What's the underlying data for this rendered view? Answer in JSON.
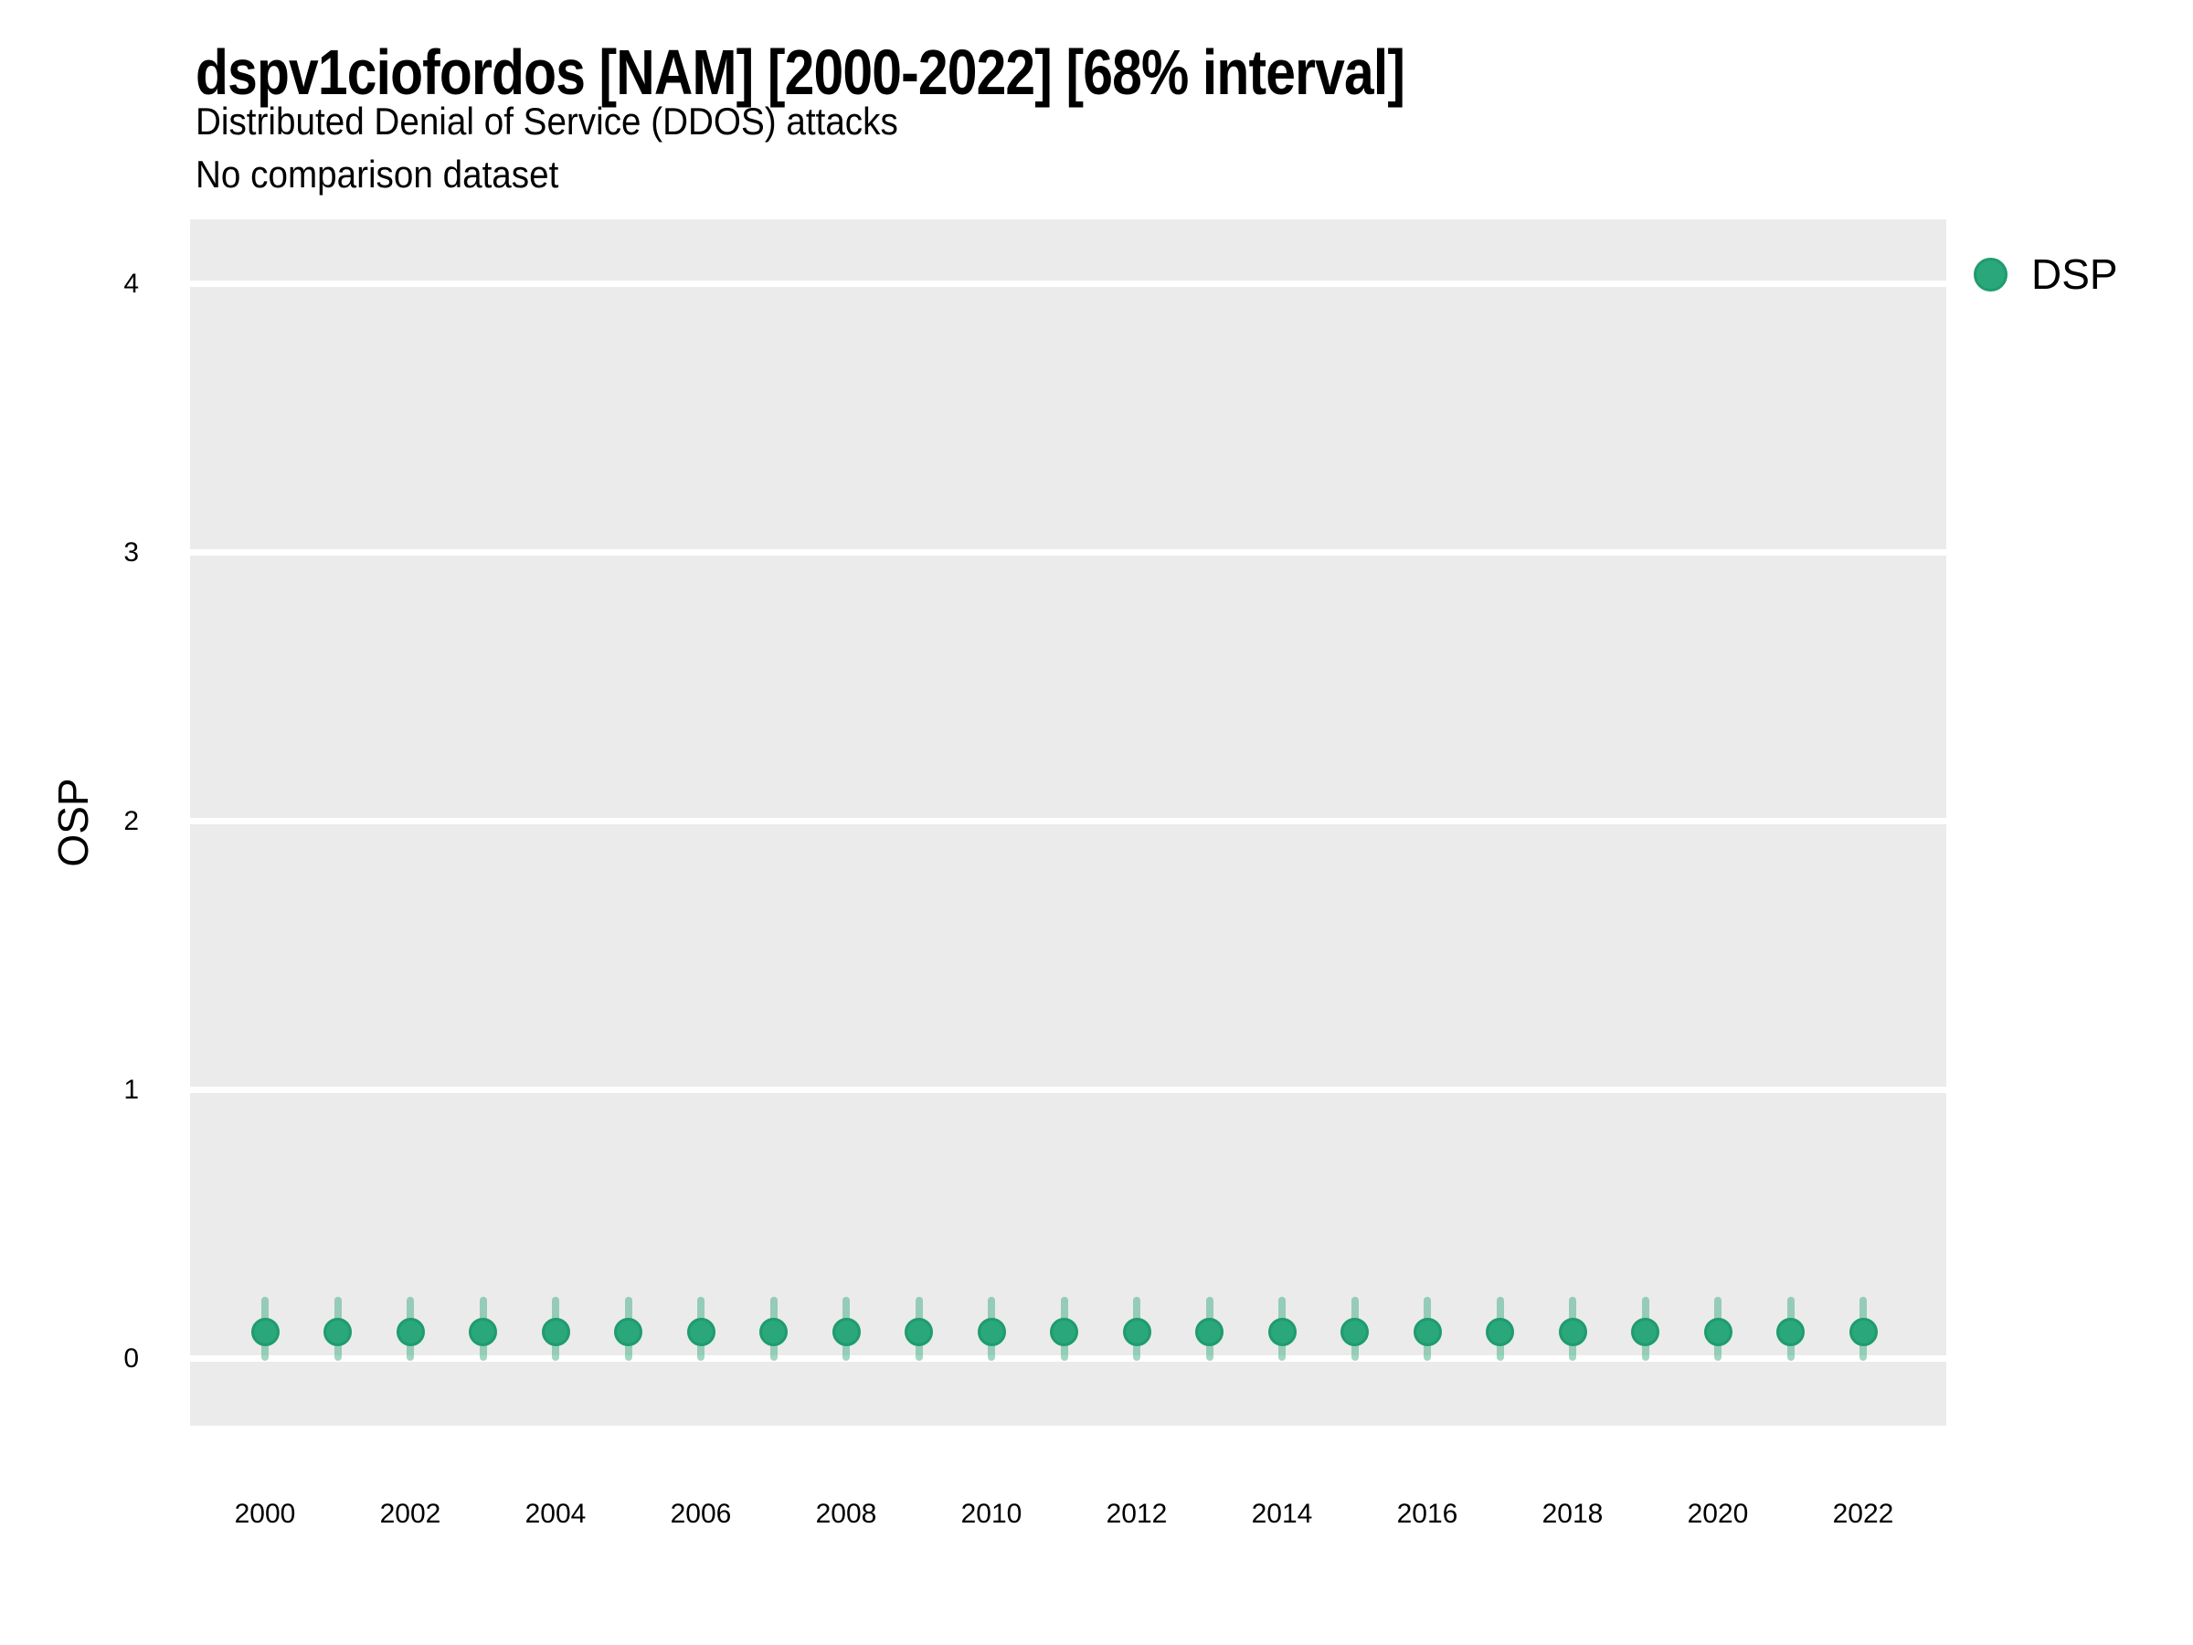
{
  "header": {
    "title": "dspv1ciofordos [NAM] [2000-2022] [68% interval]",
    "subtitle": "Distributed Denial of Service (DDOS) attacks",
    "comparison_note": "No comparison dataset"
  },
  "legend": {
    "position": "top-right",
    "items": [
      {
        "label": "DSP",
        "marker": "circle-icon",
        "color": "#2AA77B"
      }
    ]
  },
  "colors": {
    "panel_background": "#EBEBEB",
    "gridline": "#FFFFFF",
    "point_fill": "#2AA77B",
    "point_stroke": "#1F9C6D",
    "errorbar": "rgba(42,167,123,0.45)",
    "text": "#000000",
    "page_background": "#FFFFFF"
  },
  "chart_data": {
    "type": "scatter",
    "title": "dspv1ciofordos [NAM] [2000-2022] [68% interval]",
    "subtitle": "Distributed Denial of Service (DDOS) attacks",
    "note": "No comparison dataset",
    "interval_label": "68% interval",
    "xlabel": "",
    "ylabel": "OSP",
    "ylim": [
      -0.25,
      4.24
    ],
    "yticks": [
      0,
      1,
      2,
      3,
      4
    ],
    "xticks": [
      2000,
      2002,
      2004,
      2006,
      2008,
      2010,
      2012,
      2014,
      2016,
      2018,
      2020,
      2022
    ],
    "grid": "horizontal-major-only",
    "legend_position": "top-right",
    "x": [
      2000,
      2001,
      2002,
      2003,
      2004,
      2005,
      2006,
      2007,
      2008,
      2009,
      2010,
      2011,
      2012,
      2013,
      2014,
      2015,
      2016,
      2017,
      2018,
      2019,
      2020,
      2021,
      2022
    ],
    "series": [
      {
        "name": "DSP",
        "color": "#2AA77B",
        "values": [
          0.1,
          0.1,
          0.1,
          0.1,
          0.1,
          0.1,
          0.1,
          0.1,
          0.1,
          0.1,
          0.1,
          0.1,
          0.1,
          0.1,
          0.1,
          0.1,
          0.1,
          0.1,
          0.1,
          0.1,
          0.1,
          0.1,
          0.1
        ],
        "interval_low": [
          -0.01,
          -0.01,
          -0.01,
          -0.01,
          -0.01,
          -0.01,
          -0.01,
          -0.01,
          -0.01,
          -0.01,
          -0.01,
          -0.01,
          -0.01,
          -0.01,
          -0.01,
          -0.01,
          -0.01,
          -0.01,
          -0.01,
          -0.01,
          -0.01,
          -0.01,
          -0.01
        ],
        "interval_high": [
          0.23,
          0.23,
          0.23,
          0.23,
          0.23,
          0.23,
          0.23,
          0.23,
          0.23,
          0.23,
          0.23,
          0.23,
          0.23,
          0.23,
          0.23,
          0.23,
          0.23,
          0.23,
          0.23,
          0.23,
          0.23,
          0.23,
          0.23
        ]
      }
    ]
  }
}
